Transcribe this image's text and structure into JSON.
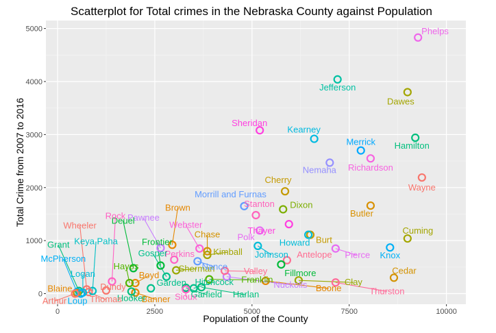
{
  "chart_data": {
    "type": "scatter",
    "title": "Scatterplot for Total crimes in the Nebraska County against Population",
    "xlabel": "Population of the County",
    "ylabel": "Total Crime from 2007 to 2016",
    "xlim": [
      -300,
      10500
    ],
    "ylim": [
      -200,
      5150
    ],
    "x_ticks": [
      0,
      2500,
      5000,
      7500,
      10000
    ],
    "y_ticks": [
      0,
      1000,
      2000,
      3000,
      4000,
      5000
    ],
    "grid": true,
    "legend": "none",
    "points": [
      {
        "label": "Phelps",
        "x": 9270,
        "y": 4830,
        "color": "#EF67EB"
      },
      {
        "label": "Jefferson",
        "x": 7200,
        "y": 4040,
        "color": "#00C1A3"
      },
      {
        "label": "Dawes",
        "x": 9000,
        "y": 3800,
        "color": "#A3A500"
      },
      {
        "label": "Sheridan",
        "x": 5200,
        "y": 3080,
        "color": "#FF3FE0"
      },
      {
        "label": "Kearney",
        "x": 6600,
        "y": 2920,
        "color": "#00BAE0"
      },
      {
        "label": "Hamilton",
        "x": 9200,
        "y": 2940,
        "color": "#00BF7D"
      },
      {
        "label": "Merrick",
        "x": 7800,
        "y": 2700,
        "color": "#00A9FF"
      },
      {
        "label": "Richardson",
        "x": 8050,
        "y": 2550,
        "color": "#F763E0"
      },
      {
        "label": "Nemaha",
        "x": 7000,
        "y": 2470,
        "color": "#9590FF"
      },
      {
        "label": "Wayne",
        "x": 9370,
        "y": 2190,
        "color": "#F8766D"
      },
      {
        "label": "Cherry",
        "x": 5850,
        "y": 1930,
        "color": "#C49A00"
      },
      {
        "label": "Butler",
        "x": 8050,
        "y": 1660,
        "color": "#D89000"
      },
      {
        "label": "Morrill and Furnas",
        "x": 4800,
        "y": 1650,
        "color": "#619CFF"
      },
      {
        "label": "Dixon",
        "x": 5800,
        "y": 1590,
        "color": "#7CAE00"
      },
      {
        "label": "Stanton",
        "x": 5100,
        "y": 1480,
        "color": "#FF62BC"
      },
      {
        "label": "Thayer",
        "x": 5950,
        "y": 1310,
        "color": "#FF3FE0"
      },
      {
        "label": "Polk",
        "x": 5200,
        "y": 1190,
        "color": "#E76BF3"
      },
      {
        "label": "Burt",
        "x": 6500,
        "y": 1110,
        "color": "#C49A00"
      },
      {
        "label": "Howard",
        "x": 6450,
        "y": 1110,
        "color": "#00BCD8"
      },
      {
        "label": "Cuming",
        "x": 9000,
        "y": 1040,
        "color": "#A3A500"
      },
      {
        "label": "Johnson",
        "x": 5150,
        "y": 900,
        "color": "#00BCD8"
      },
      {
        "label": "Knox",
        "x": 8550,
        "y": 870,
        "color": "#00B0F6"
      },
      {
        "label": "Pierce",
        "x": 7150,
        "y": 850,
        "color": "#E76BF3"
      },
      {
        "label": "Antelope",
        "x": 5900,
        "y": 630,
        "color": "#FF6C91"
      },
      {
        "label": "Fillmore",
        "x": 5750,
        "y": 550,
        "color": "#00BA38"
      },
      {
        "label": "Cedar",
        "x": 8650,
        "y": 300,
        "color": "#D39200"
      },
      {
        "label": "Clay",
        "x": 6200,
        "y": 250,
        "color": "#99A800"
      },
      {
        "label": "Thurston",
        "x": 7150,
        "y": 210,
        "color": "#FF6A98"
      },
      {
        "label": "Boone",
        "x": 5350,
        "y": 240,
        "color": "#E58700"
      },
      {
        "label": "Nuckolls",
        "x": 4350,
        "y": 320,
        "color": "#C77CFF"
      },
      {
        "label": "Valley",
        "x": 4300,
        "y": 430,
        "color": "#FF6C91"
      },
      {
        "label": "Franklin",
        "x": 3900,
        "y": 270,
        "color": "#53B400"
      },
      {
        "label": "Harlan",
        "x": 3700,
        "y": 120,
        "color": "#00BF7D"
      },
      {
        "label": "Garfield",
        "x": 3300,
        "y": 110,
        "color": "#00BF7D"
      },
      {
        "label": "Hitchcock",
        "x": 3500,
        "y": 100,
        "color": "#00C08B"
      },
      {
        "label": "Sioux",
        "x": 3300,
        "y": 80,
        "color": "#FF61C3"
      },
      {
        "label": "Sherman",
        "x": 3050,
        "y": 440,
        "color": "#99A800"
      },
      {
        "label": "Nance",
        "x": 3600,
        "y": 610,
        "color": "#619CFF"
      },
      {
        "label": "Perkins",
        "x": 3000,
        "y": 640,
        "color": "#FF61C3"
      },
      {
        "label": "Kimball",
        "x": 3850,
        "y": 730,
        "color": "#A3A500"
      },
      {
        "label": "Chase",
        "x": 3850,
        "y": 800,
        "color": "#D39200"
      },
      {
        "label": "Webster",
        "x": 3650,
        "y": 850,
        "color": "#FB61D7"
      },
      {
        "label": "Brown",
        "x": 2950,
        "y": 920,
        "color": "#E58700"
      },
      {
        "label": "Pawnee",
        "x": 2650,
        "y": 860,
        "color": "#C77CFF"
      },
      {
        "label": "Frontier",
        "x": 2650,
        "y": 530,
        "color": "#00BA38"
      },
      {
        "label": "Gosper",
        "x": 2800,
        "y": 320,
        "color": "#00C08B"
      },
      {
        "label": "Garden",
        "x": 2400,
        "y": 100,
        "color": "#00C08B"
      },
      {
        "label": "Banner",
        "x": 2000,
        "y": 20,
        "color": "#E58700"
      },
      {
        "label": "Boyd",
        "x": 2000,
        "y": 200,
        "color": "#E58700"
      },
      {
        "label": "Hooker",
        "x": 1900,
        "y": 40,
        "color": "#00BF7D"
      },
      {
        "label": "Hayes",
        "x": 1850,
        "y": 200,
        "color": "#53B400"
      },
      {
        "label": "Deuel",
        "x": 1950,
        "y": 480,
        "color": "#00BA38"
      },
      {
        "label": "Rock",
        "x": 1400,
        "y": 230,
        "color": "#FF61C3"
      },
      {
        "label": "Dundy",
        "x": 1250,
        "y": 60,
        "color": "#F8766D"
      },
      {
        "label": "Thomas",
        "x": 800,
        "y": 30,
        "color": "#F8766D"
      },
      {
        "label": "Keya Paha",
        "x": 900,
        "y": 50,
        "color": "#00BFC4"
      },
      {
        "label": "Wheeler",
        "x": 750,
        "y": 80,
        "color": "#F8766D"
      },
      {
        "label": "Grant",
        "x": 550,
        "y": 50,
        "color": "#00BF7D"
      },
      {
        "label": "McPherson",
        "x": 500,
        "y": 30,
        "color": "#00B0F6"
      },
      {
        "label": "Logan",
        "x": 650,
        "y": 20,
        "color": "#00BCD8"
      },
      {
        "label": "Blaine",
        "x": 500,
        "y": 10,
        "color": "#E58700"
      },
      {
        "label": "Loup",
        "x": 600,
        "y": 0,
        "color": "#00B0F6"
      },
      {
        "label": "Arthur",
        "x": 450,
        "y": 0,
        "color": "#F8766D"
      }
    ]
  }
}
